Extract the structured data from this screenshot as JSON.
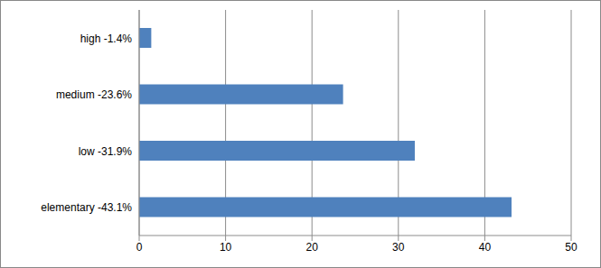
{
  "chart_data": {
    "type": "bar",
    "orientation": "horizontal",
    "categories": [
      "high -1.4%",
      "medium -23.6%",
      "low -31.9%",
      "elementary -43.1%"
    ],
    "values": [
      1.4,
      23.6,
      31.9,
      43.1
    ],
    "color": "#4f81bd",
    "xlim": [
      0,
      50
    ],
    "xticks": [
      0,
      10,
      20,
      30,
      40,
      50
    ],
    "grid": true
  }
}
